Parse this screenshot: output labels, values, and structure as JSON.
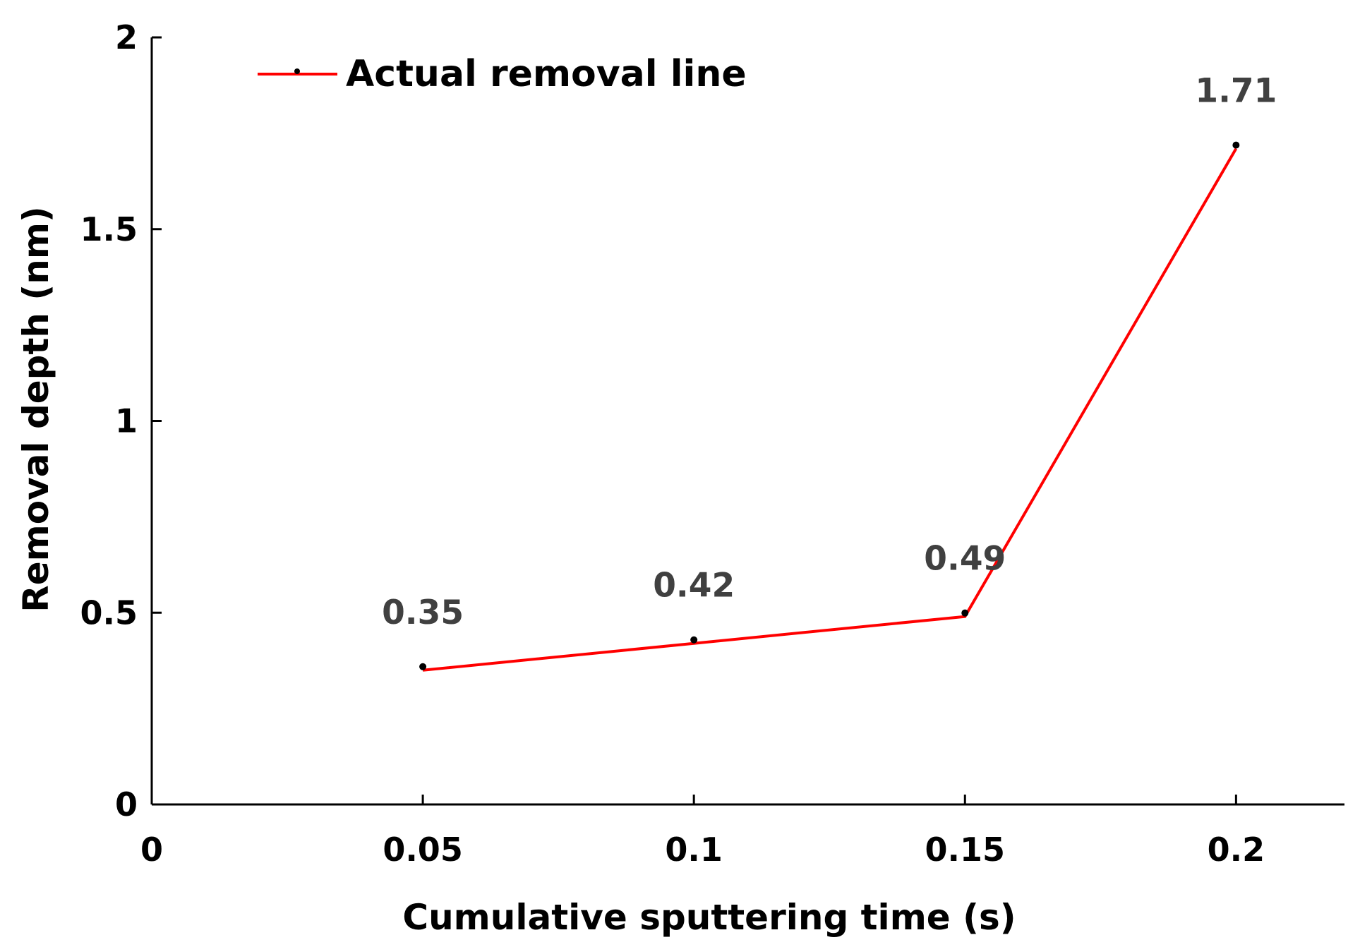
{
  "chart_data": {
    "type": "line",
    "title": "",
    "xlabel": "Cumulative sputtering time (s)",
    "ylabel": "Removal depth (nm)",
    "xlim": [
      0,
      0.22
    ],
    "ylim": [
      0,
      2
    ],
    "x_ticks": [
      0,
      0.05,
      0.1,
      0.15,
      0.2
    ],
    "x_tick_labels": [
      "0",
      "0.05",
      "0.1",
      "0.15",
      "0.2"
    ],
    "y_ticks": [
      0,
      0.5,
      1,
      1.5,
      2
    ],
    "y_tick_labels": [
      "0",
      "0.5",
      "1",
      "1.5",
      "2"
    ],
    "grid": false,
    "legend_position": "top-left",
    "series": [
      {
        "name": "Actual removal line",
        "color": "#ff0000",
        "x": [
          0.05,
          0.1,
          0.15,
          0.2
        ],
        "values": [
          0.35,
          0.42,
          0.49,
          1.71
        ],
        "data_labels": [
          "0.35",
          "0.42",
          "0.49",
          "1.71"
        ]
      }
    ]
  }
}
